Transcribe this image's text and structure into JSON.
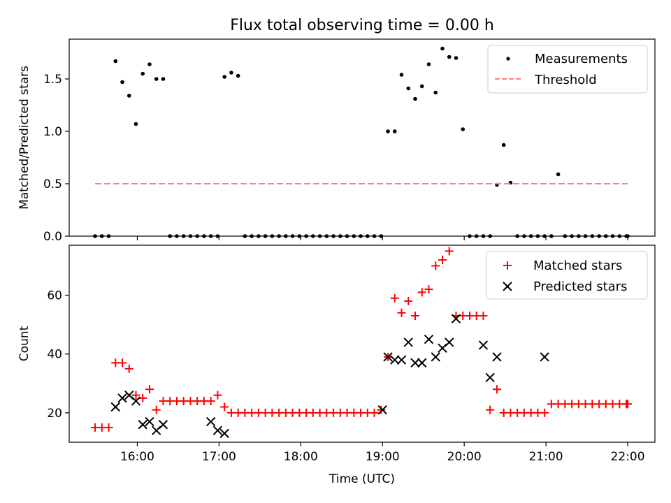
{
  "title": "Flux total observing time = 0.00 h",
  "xlabel": "Time (UTC)",
  "chart_data": [
    {
      "type": "scatter",
      "panel": "top",
      "ylabel": "Matched/Predicted stars",
      "ylim": [
        0.0,
        1.88
      ],
      "xlim": [
        "15:10",
        "22:20"
      ],
      "yticks": [
        "0.0",
        "0.5",
        "1.0",
        "1.5"
      ],
      "ytick_values": [
        0.0,
        0.5,
        1.0,
        1.5
      ],
      "legend_position": "top-right",
      "series": [
        {
          "name": "Measurements",
          "marker": "dot",
          "color": "#000000",
          "x": [
            "15:29",
            "15:34",
            "15:39",
            "15:44",
            "15:49",
            "15:54",
            "15:59",
            "16:04",
            "16:09",
            "16:14",
            "16:19",
            "16:24",
            "16:29",
            "16:34",
            "16:39",
            "16:44",
            "16:49",
            "16:54",
            "16:59",
            "17:04",
            "17:09",
            "17:14",
            "17:19",
            "17:24",
            "17:29",
            "17:34",
            "17:39",
            "17:44",
            "17:49",
            "17:54",
            "17:59",
            "18:04",
            "18:09",
            "18:14",
            "18:19",
            "18:24",
            "18:29",
            "18:34",
            "18:39",
            "18:44",
            "18:49",
            "18:54",
            "18:59",
            "19:04",
            "19:09",
            "19:14",
            "19:19",
            "19:24",
            "19:29",
            "19:34",
            "19:39",
            "19:44",
            "19:49",
            "19:54",
            "19:59",
            "20:04",
            "20:09",
            "20:14",
            "20:19",
            "20:24",
            "20:29",
            "20:34",
            "20:39",
            "20:44",
            "20:49",
            "20:54",
            "20:59",
            "21:04",
            "21:09",
            "21:14",
            "21:19",
            "21:24",
            "21:29",
            "21:34",
            "21:39",
            "21:44",
            "21:49",
            "21:54",
            "21:59",
            "22:00"
          ],
          "y": [
            0,
            0,
            0,
            1.67,
            1.47,
            1.34,
            1.07,
            1.55,
            1.64,
            1.5,
            1.5,
            0,
            0,
            0,
            0,
            0,
            0,
            0,
            0,
            1.52,
            1.56,
            1.53,
            0,
            0,
            0,
            0,
            0,
            0,
            0,
            0,
            0,
            0,
            0,
            0,
            0,
            0,
            0,
            0,
            0,
            0,
            0,
            0,
            0,
            1.0,
            1.0,
            1.54,
            1.41,
            1.31,
            1.43,
            1.64,
            1.37,
            1.79,
            1.71,
            1.7,
            1.02,
            0,
            0,
            0,
            0,
            0.49,
            0.87,
            0.51,
            0,
            0,
            0,
            0,
            0,
            0,
            0.59,
            0,
            0,
            0,
            0,
            0,
            0,
            0,
            0,
            0,
            0,
            0
          ]
        },
        {
          "name": "Threshold",
          "style": "dashed",
          "color": "#ff8080",
          "x": [
            "15:29",
            "22:00"
          ],
          "y": [
            0.5,
            0.5
          ]
        }
      ]
    },
    {
      "type": "scatter",
      "panel": "bottom",
      "ylabel": "Count",
      "ylim": [
        10,
        77
      ],
      "xlim": [
        "15:10",
        "22:20"
      ],
      "yticks": [
        "20",
        "40",
        "60"
      ],
      "ytick_values": [
        20,
        40,
        60
      ],
      "xticks": [
        "16:00",
        "17:00",
        "18:00",
        "19:00",
        "20:00",
        "21:00",
        "22:00"
      ],
      "legend_position": "top-right",
      "series": [
        {
          "name": "Matched stars",
          "marker": "plus",
          "color": "#ff0000",
          "x": [
            "15:29",
            "15:34",
            "15:39",
            "15:44",
            "15:49",
            "15:54",
            "15:59",
            "16:04",
            "16:09",
            "16:14",
            "16:19",
            "16:24",
            "16:29",
            "16:34",
            "16:39",
            "16:44",
            "16:49",
            "16:54",
            "16:59",
            "17:04",
            "17:09",
            "17:14",
            "17:19",
            "17:24",
            "17:29",
            "17:34",
            "17:39",
            "17:44",
            "17:49",
            "17:54",
            "17:59",
            "18:04",
            "18:09",
            "18:14",
            "18:19",
            "18:24",
            "18:29",
            "18:34",
            "18:39",
            "18:44",
            "18:49",
            "18:54",
            "18:59",
            "19:04",
            "19:09",
            "19:14",
            "19:19",
            "19:24",
            "19:29",
            "19:34",
            "19:39",
            "19:44",
            "19:49",
            "19:54",
            "19:59",
            "20:04",
            "20:09",
            "20:14",
            "20:19",
            "20:24",
            "20:29",
            "20:34",
            "20:39",
            "20:44",
            "20:49",
            "20:54",
            "20:59",
            "21:04",
            "21:09",
            "21:14",
            "21:19",
            "21:24",
            "21:29",
            "21:34",
            "21:39",
            "21:44",
            "21:49",
            "21:54",
            "21:59",
            "22:00"
          ],
          "y": [
            15,
            15,
            15,
            37,
            37,
            35,
            26,
            25,
            28,
            21,
            24,
            24,
            24,
            24,
            24,
            24,
            24,
            24,
            26,
            22,
            20,
            20,
            20,
            20,
            20,
            20,
            20,
            20,
            20,
            20,
            20,
            20,
            20,
            20,
            20,
            20,
            20,
            20,
            20,
            20,
            20,
            20,
            21,
            39,
            59,
            54,
            58,
            53,
            61,
            62,
            70,
            72,
            75,
            53,
            53,
            53,
            53,
            53,
            21,
            28,
            20,
            20,
            20,
            20,
            20,
            20,
            20,
            23,
            23,
            23,
            23,
            23,
            23,
            23,
            23,
            23,
            23,
            23,
            23,
            23
          ]
        },
        {
          "name": "Predicted stars",
          "marker": "cross",
          "color": "#000000",
          "x": [
            "15:44",
            "15:49",
            "15:54",
            "15:59",
            "16:04",
            "16:09",
            "16:14",
            "16:19",
            "16:54",
            "16:59",
            "17:04",
            "19:00",
            "19:04",
            "19:09",
            "19:14",
            "19:19",
            "19:24",
            "19:29",
            "19:34",
            "19:39",
            "19:44",
            "19:49",
            "19:54",
            "20:14",
            "20:19",
            "20:24",
            "20:59"
          ],
          "y": [
            22,
            25,
            26,
            24,
            16,
            17,
            14,
            16,
            17,
            14,
            13,
            21,
            39,
            38,
            38,
            44,
            37,
            37,
            45,
            39,
            42,
            44,
            52,
            43,
            32,
            39,
            39
          ]
        }
      ]
    }
  ]
}
